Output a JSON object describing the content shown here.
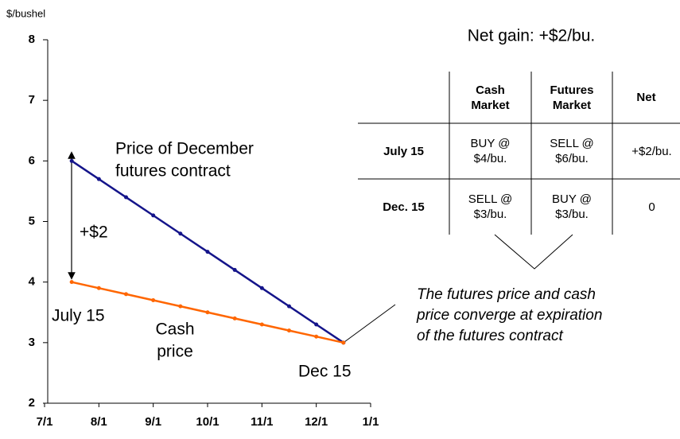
{
  "chart_data": {
    "type": "line",
    "y_label": "$/bushel",
    "x": [
      7.5,
      8,
      8.5,
      9,
      9.5,
      10,
      10.5,
      11,
      11.5,
      12,
      12.5
    ],
    "series": [
      {
        "name": "Price of December futures contract",
        "color": "#14148a",
        "values": [
          6,
          5.7,
          5.4,
          5.1,
          4.8,
          4.5,
          4.2,
          3.9,
          3.6,
          3.3,
          3.0
        ]
      },
      {
        "name": "Cash price",
        "color": "#ff6600",
        "values": [
          4,
          3.9,
          3.8,
          3.7,
          3.6,
          3.5,
          3.4,
          3.3,
          3.2,
          3.1,
          3.0
        ]
      }
    ],
    "xlim": [
      7,
      13
    ],
    "xticks": [
      {
        "value": 7,
        "label": "7/1"
      },
      {
        "value": 8,
        "label": "8/1"
      },
      {
        "value": 9,
        "label": "9/1"
      },
      {
        "value": 10,
        "label": "10/1"
      },
      {
        "value": 11,
        "label": "11/1"
      },
      {
        "value": 12,
        "label": "12/1"
      },
      {
        "value": 13,
        "label": "1/1"
      }
    ],
    "ylim": [
      2,
      8
    ],
    "yticks": [
      2,
      3,
      4,
      5,
      6,
      7,
      8
    ],
    "annotations": {
      "futures_label": [
        "Price of December",
        "futures contract"
      ],
      "spread": "+$2",
      "start": "July 15",
      "cash_label": [
        "Cash",
        "price"
      ],
      "end": "Dec 15",
      "note": [
        "The futures price and cash",
        "price converge at expiration",
        "of the futures contract"
      ]
    }
  },
  "net_gain": "Net gain: +$2/bu.",
  "table": {
    "columns": [
      "Cash Market",
      "Futures Market",
      "Net"
    ],
    "rows": [
      {
        "label": "July 15",
        "cells": [
          "BUY @ $4/bu.",
          "SELL @ $6/bu.",
          "+$2/bu."
        ]
      },
      {
        "label": "Dec. 15",
        "cells": [
          "SELL @ $3/bu.",
          "BUY @ $3/bu.",
          "0"
        ]
      }
    ]
  }
}
